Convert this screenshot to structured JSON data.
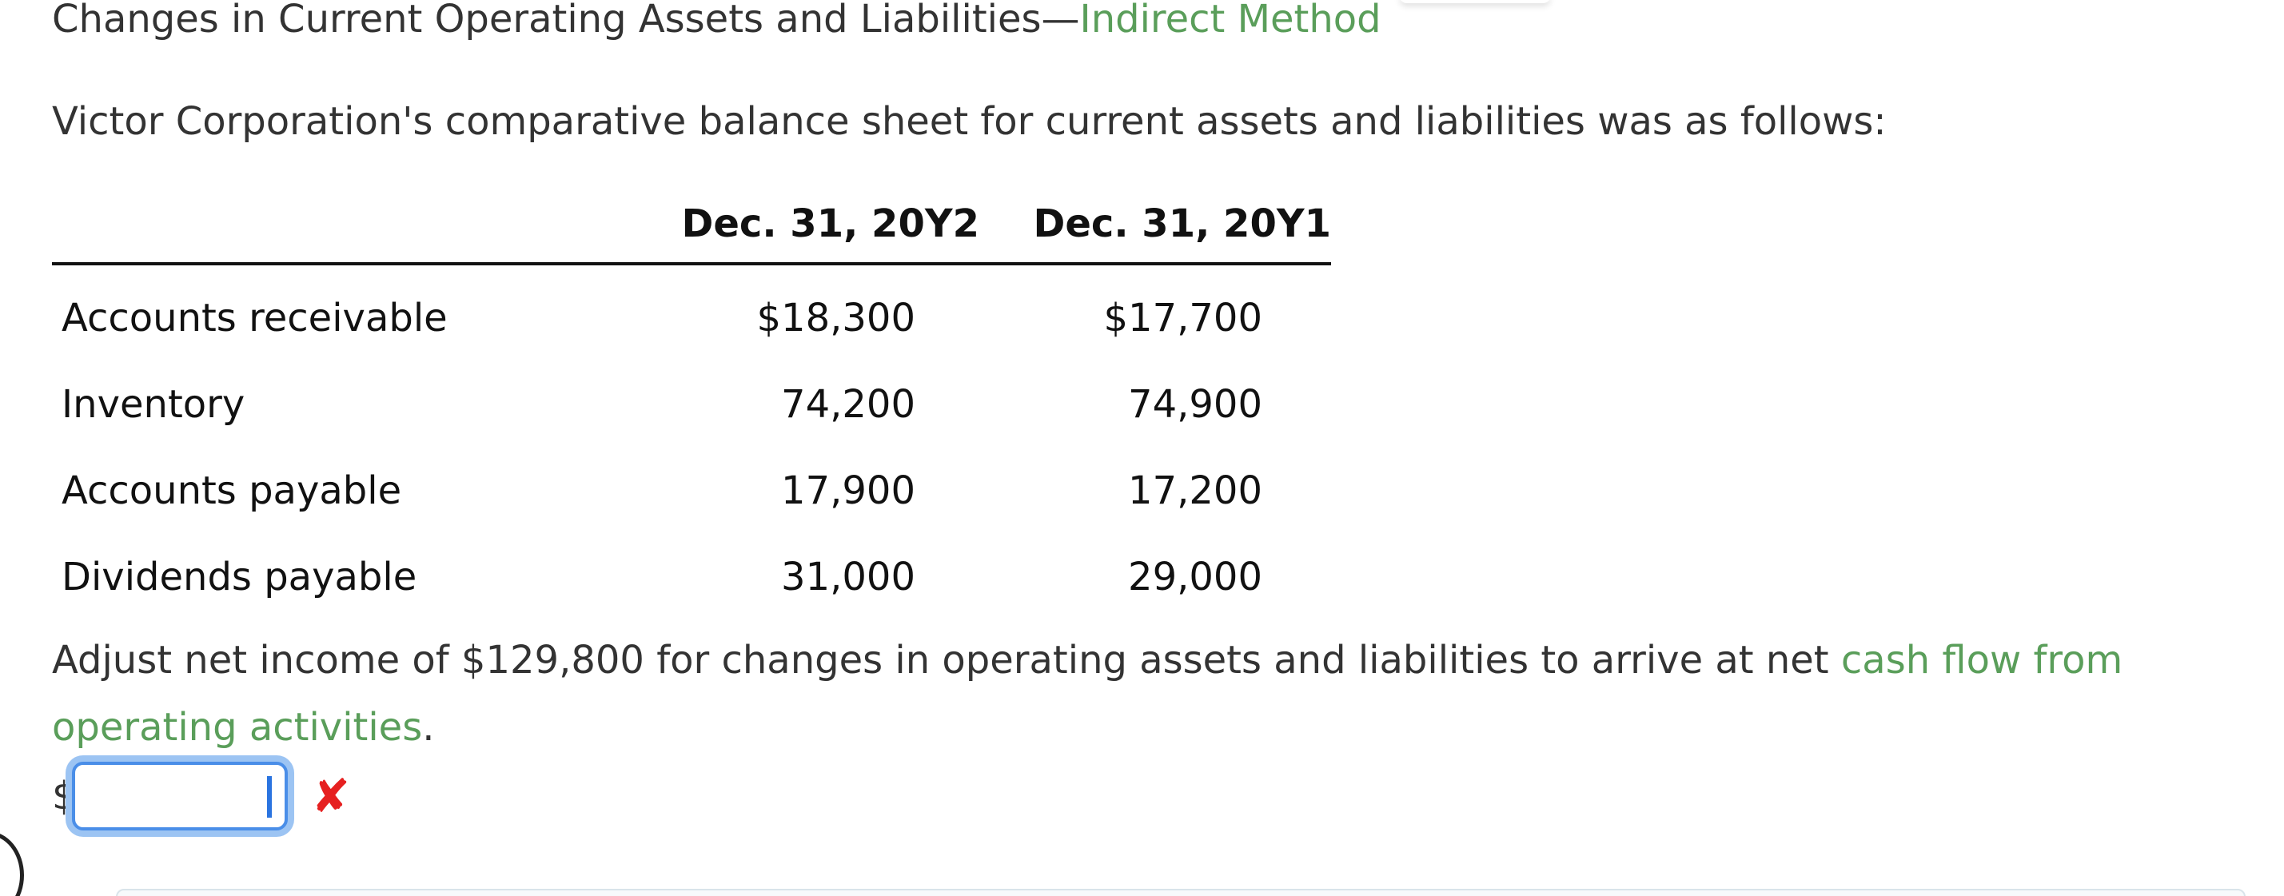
{
  "heading": {
    "prefix": "Changes in Current Operating Assets and Liabilities—",
    "link": "Indirect Method"
  },
  "intro": "Victor Corporation's comparative balance sheet for current assets and liabilities was as follows:",
  "table": {
    "columns": [
      "Dec. 31, 20Y2",
      "Dec. 31, 20Y1"
    ],
    "rows": [
      {
        "label": "Accounts receivable",
        "y2": "$18,300",
        "y1": "$17,700"
      },
      {
        "label": "Inventory",
        "y2": "74,200",
        "y1": "74,900"
      },
      {
        "label": "Accounts payable",
        "y2": "17,900",
        "y1": "17,200"
      },
      {
        "label": "Dividends payable",
        "y2": "31,000",
        "y1": "29,000"
      }
    ]
  },
  "adjust": {
    "text": "Adjust net income of $129,800 for changes in operating assets and liabilities to arrive at net ",
    "link": "cash flow from operating activities",
    "end": "."
  },
  "answer": {
    "currency": "$",
    "value": "",
    "status": "incorrect",
    "status_symbol": "✘",
    "status_color": "#e62020"
  },
  "colors": {
    "link": "#5a9e5a",
    "focus_border": "#4a8ee8"
  }
}
